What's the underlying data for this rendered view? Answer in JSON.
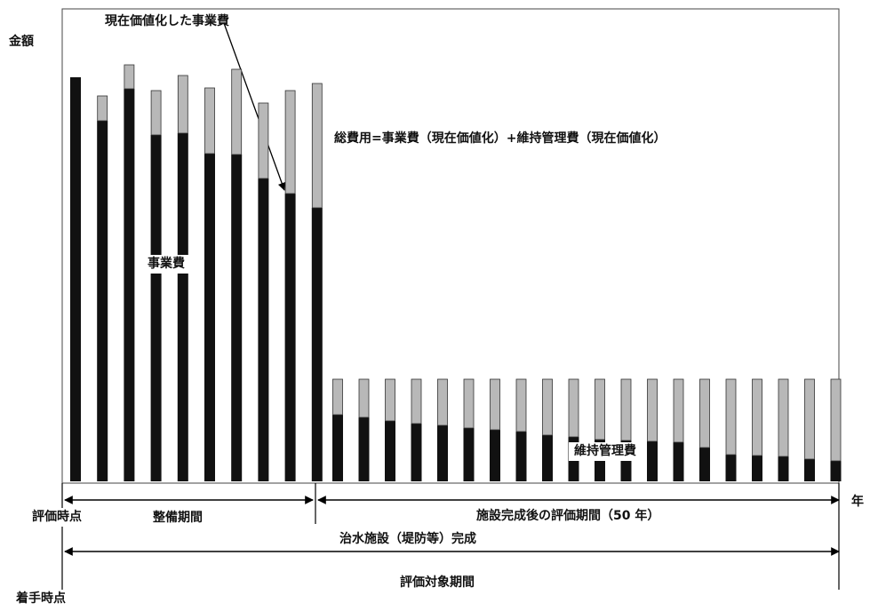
{
  "chart_data": {
    "type": "bar",
    "stacked": true,
    "ylabel": "金額",
    "xlabel": "年",
    "series": [
      {
        "name": "事業費",
        "color": "#111111",
        "values": [
          9.1,
          8.12,
          8.84,
          7.8,
          7.84,
          7.38,
          7.36,
          6.82,
          6.48,
          6.16,
          1.5,
          1.44,
          1.36,
          1.3,
          1.26,
          1.2,
          1.16,
          1.12,
          1.04,
          1.0,
          0.94,
          0.92,
          0.9,
          0.88,
          0.76,
          0.6,
          0.58,
          0.56,
          0.5,
          0.46
        ]
      },
      {
        "name": "維持管理費",
        "color": "#b8b8b8",
        "values": [
          0,
          0.56,
          0.54,
          1.0,
          1.3,
          1.48,
          1.92,
          1.7,
          2.32,
          2.8,
          0.8,
          0.86,
          0.94,
          1.0,
          1.04,
          1.1,
          1.14,
          1.18,
          1.26,
          1.3,
          1.36,
          1.38,
          1.4,
          1.42,
          1.54,
          1.7,
          1.72,
          1.74,
          1.8,
          1.84
        ]
      }
    ],
    "annotations": {
      "pv_label": "現在価値化した事業費",
      "formula": "総費用=事業費（現在価値化）+維持管理費（現在価値化）",
      "business_cost": "事業費",
      "maintenance_cost": "維持管理費"
    },
    "periods": {
      "evaluation_point": "評価時点",
      "construction": "整備期間",
      "post_completion": "施設完成後の評価期間（50 年）",
      "completion": "治水施設（堤防等）完成",
      "evaluation_target": "評価対象期間",
      "start_point": "着手時点"
    }
  }
}
